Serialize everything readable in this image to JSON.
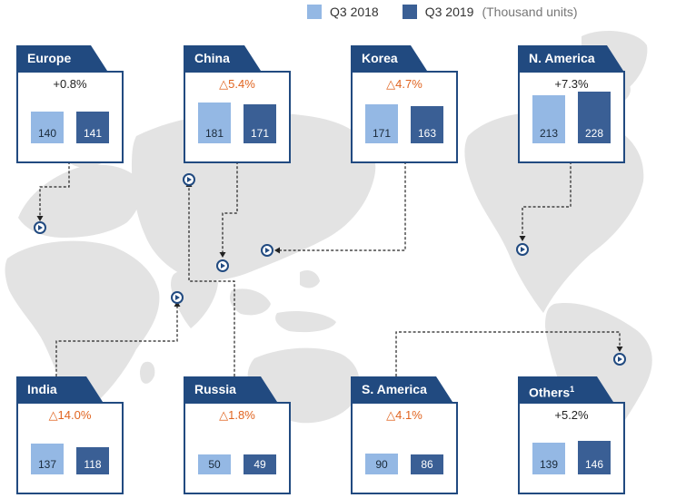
{
  "legend": {
    "series_a": "Q3 2018",
    "series_b": "Q3 2019",
    "unit": "(Thousand units)"
  },
  "colors": {
    "q3_2018": "#94b8e4",
    "q3_2019": "#3a5f95",
    "tab": "#214a80",
    "decline": "#e06420"
  },
  "chart_data": {
    "type": "bar",
    "title": "",
    "categories": [
      "Europe",
      "China",
      "Korea",
      "N. America",
      "India",
      "Russia",
      "S. America",
      "Others"
    ],
    "series": [
      {
        "name": "Q3 2018",
        "values": [
          140,
          181,
          171,
          213,
          137,
          50,
          90,
          139
        ]
      },
      {
        "name": "Q3 2019",
        "values": [
          141,
          171,
          163,
          228,
          118,
          49,
          86,
          146
        ]
      }
    ],
    "ylim": [
      0,
      240
    ],
    "regions": [
      {
        "key": "europe",
        "name": "Europe",
        "sup": "",
        "change": "+0.8%",
        "dir": "pos",
        "q3_2018": "140",
        "q3_2019": "141"
      },
      {
        "key": "china",
        "name": "China",
        "sup": "",
        "change": "△5.4%",
        "dir": "neg",
        "q3_2018": "181",
        "q3_2019": "171"
      },
      {
        "key": "korea",
        "name": "Korea",
        "sup": "",
        "change": "△4.7%",
        "dir": "neg",
        "q3_2018": "171",
        "q3_2019": "163"
      },
      {
        "key": "n-america",
        "name": "N. America",
        "sup": "",
        "change": "+7.3%",
        "dir": "pos",
        "q3_2018": "213",
        "q3_2019": "228"
      },
      {
        "key": "india",
        "name": "India",
        "sup": "",
        "change": "△14.0%",
        "dir": "neg",
        "q3_2018": "137",
        "q3_2019": "118"
      },
      {
        "key": "russia",
        "name": "Russia",
        "sup": "",
        "change": "△1.8%",
        "dir": "neg",
        "q3_2018": "50",
        "q3_2019": "49"
      },
      {
        "key": "s-america",
        "name": "S. America",
        "sup": "",
        "change": "△4.1%",
        "dir": "neg",
        "q3_2018": "90",
        "q3_2019": "86"
      },
      {
        "key": "others",
        "name": "Others",
        "sup": "1",
        "change": "+5.2%",
        "dir": "pos",
        "q3_2018": "139",
        "q3_2019": "146"
      }
    ]
  }
}
